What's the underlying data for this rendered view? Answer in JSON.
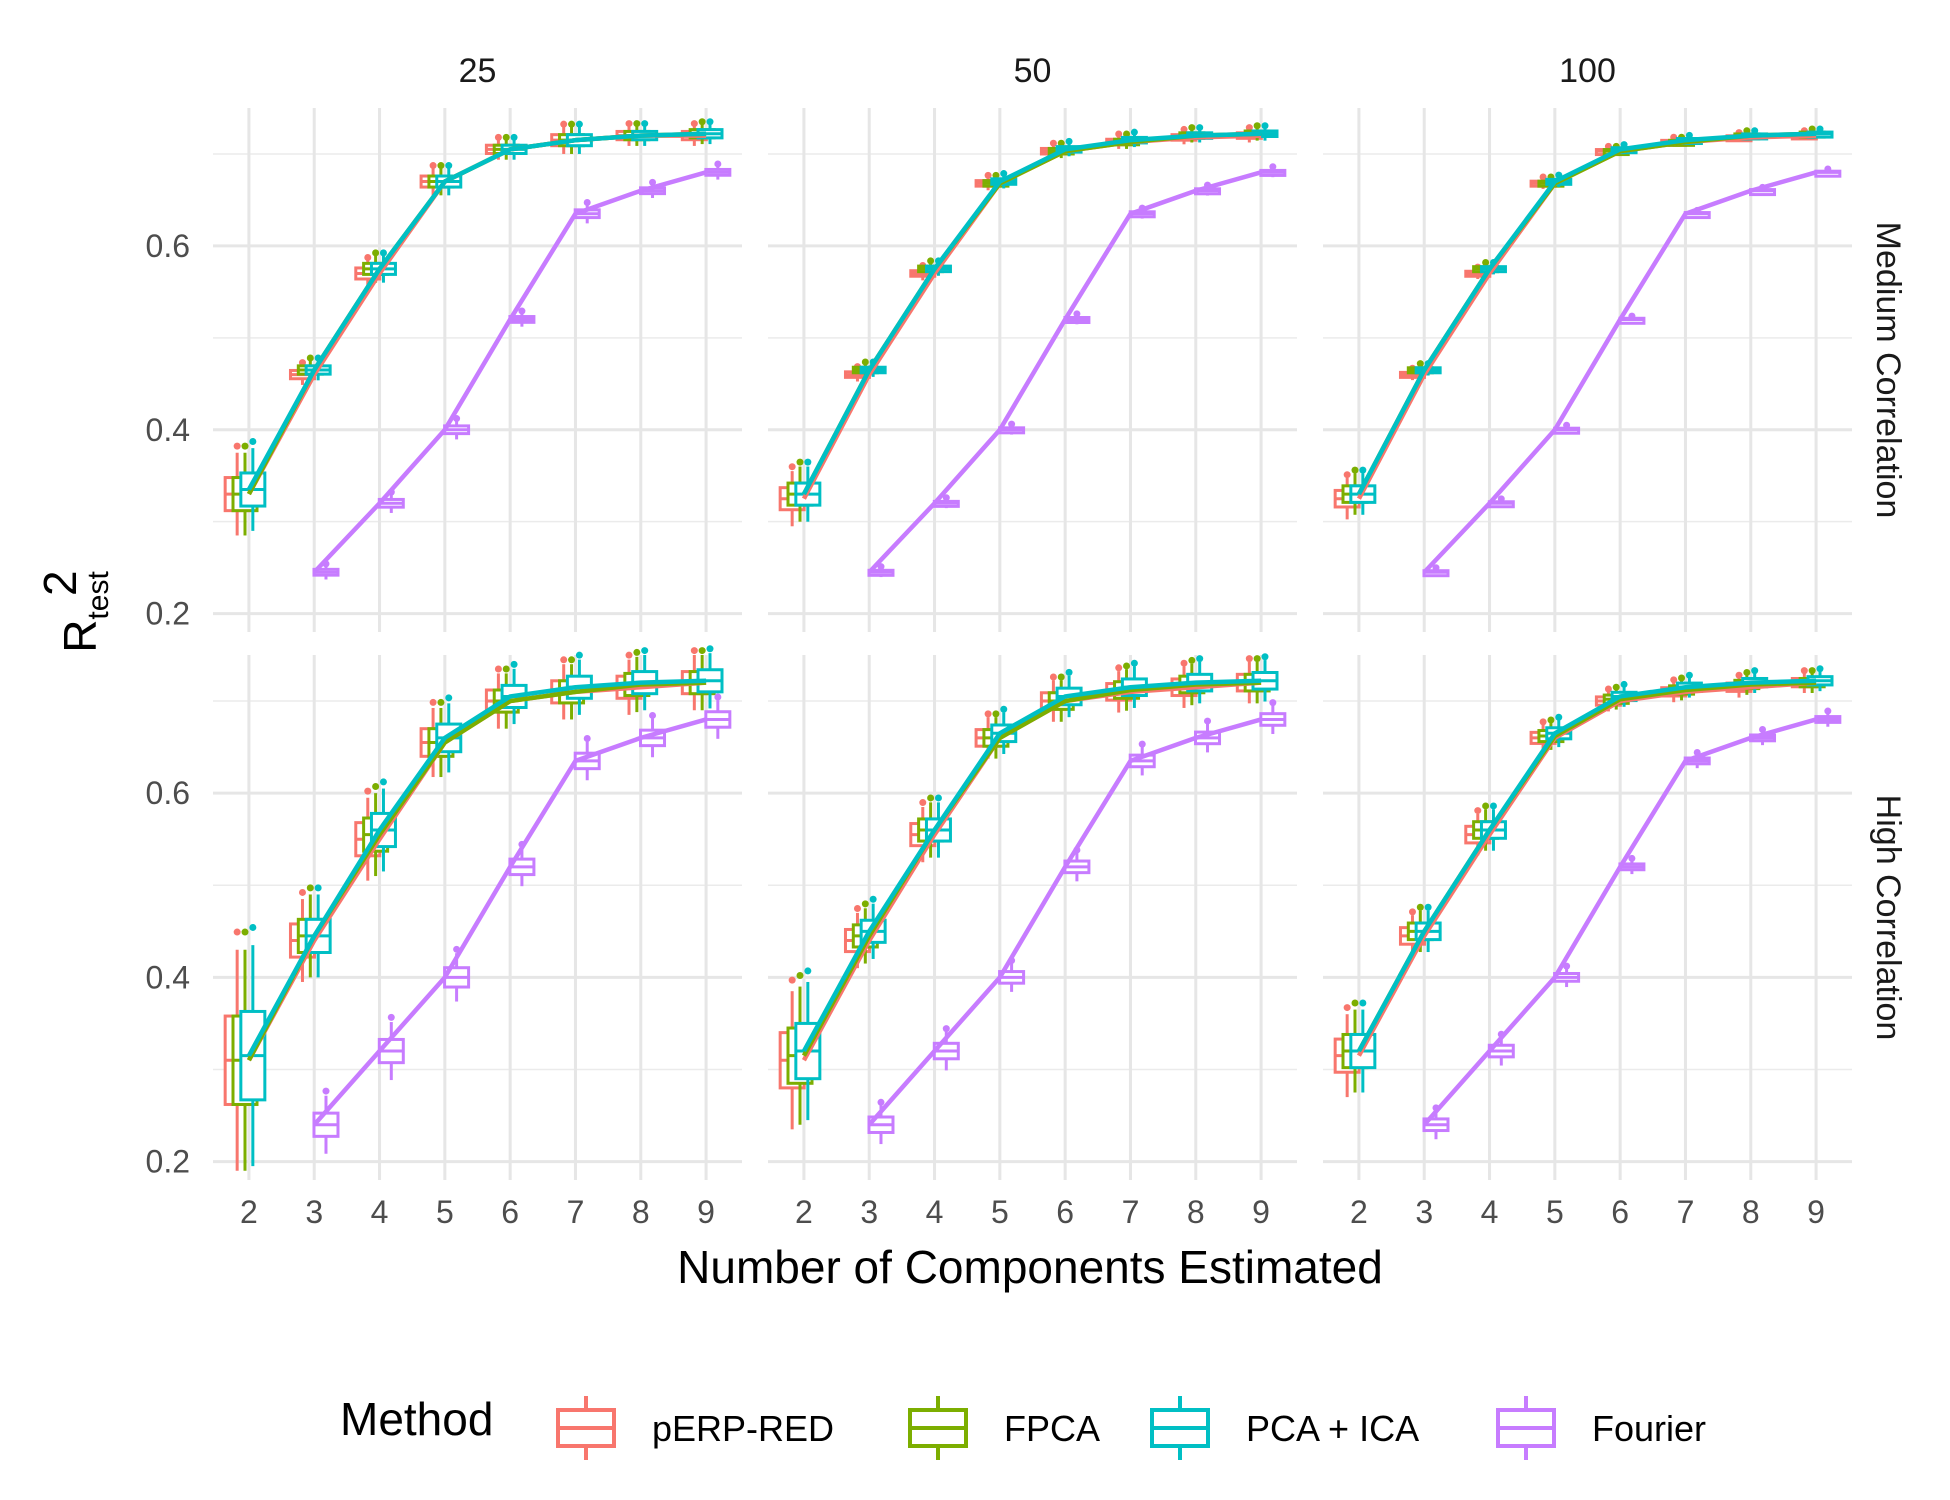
{
  "chart_data": {
    "type": "line",
    "xlabel": "Number of Components Estimated",
    "ylabel": {
      "base": "R",
      "sup": "2",
      "sub": "test"
    },
    "x": [
      2,
      3,
      4,
      5,
      6,
      7,
      8,
      9
    ],
    "ylim": [
      0.18,
      0.75
    ],
    "yticks": [
      0.2,
      0.4,
      0.6
    ],
    "ytick_labels": [
      "0.2",
      "0.4",
      "0.6"
    ],
    "grid": true,
    "legend_title": "Method",
    "legend_position": "bottom",
    "column_labels": [
      "25",
      "50",
      "100"
    ],
    "row_labels": [
      "Medium Correlation",
      "High Correlation"
    ],
    "series": [
      {
        "name": "pERP-RED",
        "color": "#F8766D"
      },
      {
        "name": "FPCA",
        "color": "#7CAE00"
      },
      {
        "name": "PCA + ICA",
        "color": "#00BFC4"
      },
      {
        "name": "Fourier",
        "color": "#C77CFF"
      }
    ],
    "panels": [
      {
        "row": 0,
        "col": 0,
        "lines": [
          [
            0.33,
            0.46,
            0.57,
            0.67,
            0.705,
            0.715,
            0.72,
            0.72
          ],
          [
            0.33,
            0.465,
            0.575,
            0.67,
            0.705,
            0.715,
            0.72,
            0.722
          ],
          [
            0.335,
            0.465,
            0.575,
            0.67,
            0.705,
            0.715,
            0.72,
            0.722
          ],
          [
            null,
            0.245,
            0.32,
            0.4,
            0.52,
            0.635,
            0.66,
            0.68
          ]
        ],
        "box_width": [
          0.06,
          0.015,
          0.02,
          0.02,
          0.015,
          0.02,
          0.015,
          0.015
        ]
      },
      {
        "row": 0,
        "col": 1,
        "lines": [
          [
            0.325,
            0.46,
            0.57,
            0.668,
            0.703,
            0.713,
            0.718,
            0.72
          ],
          [
            0.33,
            0.465,
            0.575,
            0.668,
            0.703,
            0.713,
            0.72,
            0.722
          ],
          [
            0.33,
            0.465,
            0.575,
            0.67,
            0.705,
            0.715,
            0.72,
            0.722
          ],
          [
            null,
            0.245,
            0.32,
            0.4,
            0.52,
            0.635,
            0.66,
            0.68
          ]
        ],
        "box_width": [
          0.04,
          0.01,
          0.01,
          0.01,
          0.01,
          0.01,
          0.01,
          0.01
        ]
      },
      {
        "row": 0,
        "col": 2,
        "lines": [
          [
            0.325,
            0.46,
            0.57,
            0.668,
            0.703,
            0.713,
            0.718,
            0.72
          ],
          [
            0.33,
            0.465,
            0.575,
            0.668,
            0.703,
            0.713,
            0.72,
            0.722
          ],
          [
            0.33,
            0.465,
            0.575,
            0.67,
            0.705,
            0.715,
            0.72,
            0.722
          ],
          [
            null,
            0.245,
            0.32,
            0.4,
            0.52,
            0.635,
            0.66,
            0.68
          ]
        ],
        "box_width": [
          0.03,
          0.008,
          0.008,
          0.008,
          0.006,
          0.006,
          0.006,
          0.006
        ]
      },
      {
        "row": 1,
        "col": 0,
        "lines": [
          [
            0.31,
            0.44,
            0.55,
            0.655,
            0.7,
            0.71,
            0.715,
            0.72
          ],
          [
            0.31,
            0.445,
            0.555,
            0.655,
            0.7,
            0.71,
            0.718,
            0.72
          ],
          [
            0.315,
            0.445,
            0.56,
            0.66,
            0.705,
            0.715,
            0.72,
            0.722
          ],
          [
            null,
            0.24,
            0.32,
            0.4,
            0.52,
            0.635,
            0.66,
            0.68
          ]
        ],
        "box_width": [
          0.16,
          0.06,
          0.06,
          0.05,
          0.04,
          0.04,
          0.04,
          0.04
        ]
      },
      {
        "row": 1,
        "col": 1,
        "lines": [
          [
            0.31,
            0.44,
            0.555,
            0.66,
            0.7,
            0.71,
            0.715,
            0.72
          ],
          [
            0.315,
            0.445,
            0.56,
            0.66,
            0.7,
            0.712,
            0.718,
            0.72
          ],
          [
            0.32,
            0.45,
            0.56,
            0.665,
            0.705,
            0.715,
            0.72,
            0.722
          ],
          [
            null,
            0.24,
            0.32,
            0.4,
            0.52,
            0.635,
            0.66,
            0.68
          ]
        ],
        "box_width": [
          0.1,
          0.04,
          0.04,
          0.03,
          0.03,
          0.03,
          0.03,
          0.03
        ]
      },
      {
        "row": 1,
        "col": 2,
        "lines": [
          [
            0.315,
            0.445,
            0.555,
            0.66,
            0.7,
            0.71,
            0.715,
            0.72
          ],
          [
            0.32,
            0.45,
            0.56,
            0.662,
            0.702,
            0.712,
            0.718,
            0.72
          ],
          [
            0.32,
            0.45,
            0.56,
            0.665,
            0.705,
            0.715,
            0.72,
            0.722
          ],
          [
            null,
            0.24,
            0.32,
            0.4,
            0.52,
            0.635,
            0.66,
            0.68
          ]
        ],
        "box_width": [
          0.06,
          0.03,
          0.03,
          0.02,
          0.015,
          0.015,
          0.015,
          0.015
        ]
      }
    ]
  }
}
